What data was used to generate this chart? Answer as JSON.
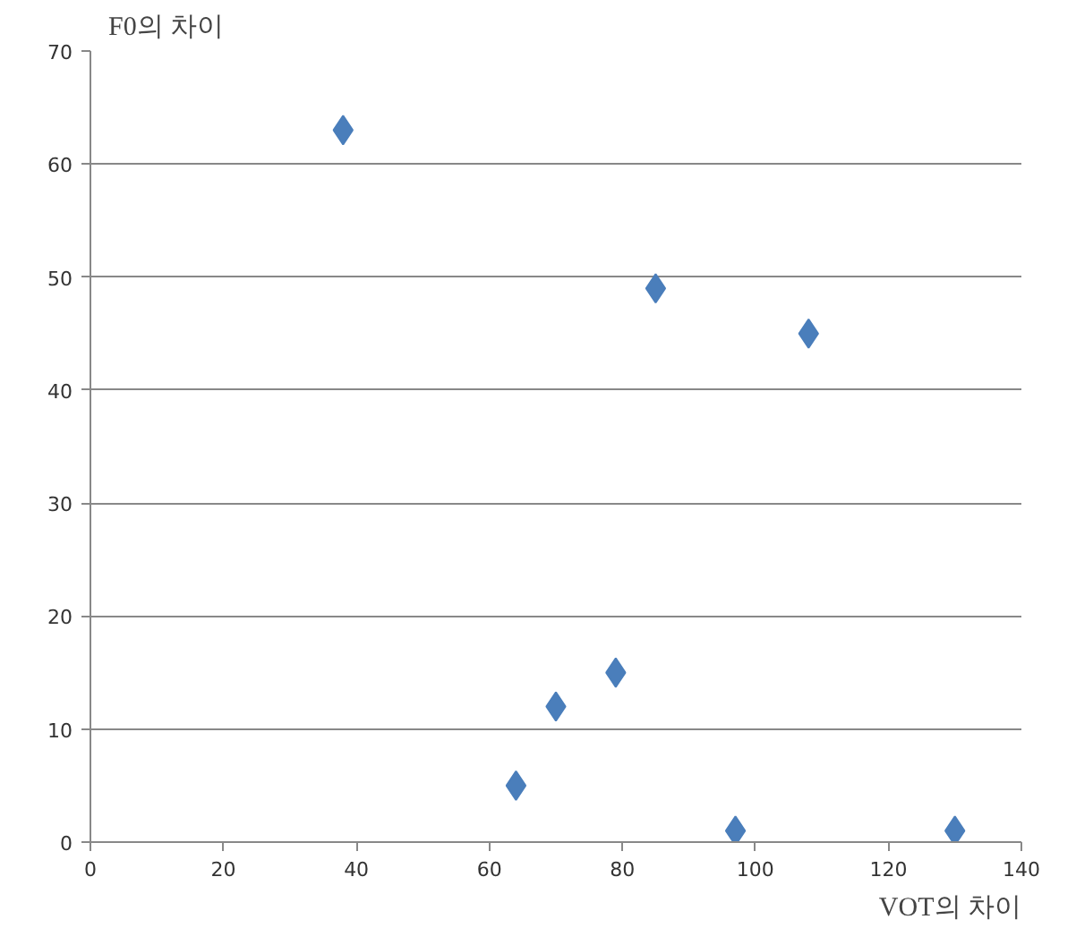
{
  "chart_data": {
    "type": "scatter",
    "xlabel": "VOT의 차이",
    "ylabel": "F0의 차이",
    "x": [
      38,
      64,
      70,
      79,
      85,
      97,
      108,
      130
    ],
    "series": [
      {
        "color": "#4a7ebb",
        "values": [
          63,
          5,
          12,
          15,
          49,
          1,
          45,
          1
        ]
      }
    ],
    "xlim": [
      0,
      140
    ],
    "xticks": [
      0,
      20,
      40,
      60,
      80,
      100,
      120,
      140
    ],
    "ylim": [
      0,
      70
    ],
    "yticks": [
      0,
      10,
      20,
      30,
      40,
      50,
      60,
      70
    ],
    "grid": "y",
    "marker": "diamond"
  }
}
